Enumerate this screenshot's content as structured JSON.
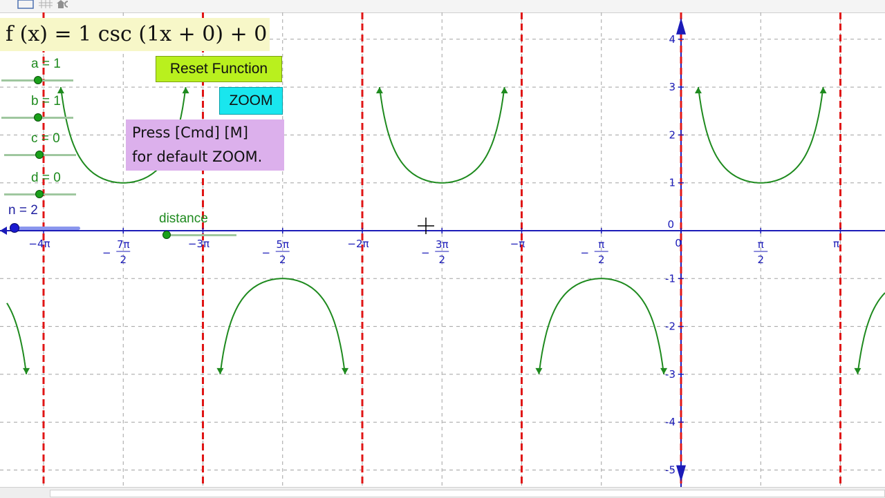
{
  "colors": {
    "curve": "#1e8a1e",
    "asymptote": "#e01515",
    "axis": "#1b1bb8",
    "grid": "#a0a0a0",
    "tick_label": "#1b1bb8",
    "formula_bg": "#f7f7c8",
    "reset_bg": "#b9f01e",
    "zoom_bg": "#19e6ee",
    "hint_bg": "#dcb0ec"
  },
  "formula": "f (x) = 1 csc (1x + 0) + 0",
  "sliders": {
    "a": {
      "label": "a = 1",
      "value": 1
    },
    "b": {
      "label": "b = 1",
      "value": 1
    },
    "c": {
      "label": "c = 0",
      "value": 0
    },
    "d": {
      "label": "d = 0",
      "value": 0
    },
    "n": {
      "label": "n = 2",
      "value": 2
    },
    "distance": {
      "label": "distance"
    }
  },
  "buttons": {
    "reset": "Reset Function",
    "zoom": "ZOOM"
  },
  "hint": {
    "line1": "Press [Cmd] [M]",
    "line2": "for default ZOOM."
  },
  "toolbar_icons": [
    "graphics-view-icon",
    "grid-icon",
    "home-icon",
    "undo-icon"
  ],
  "chart_data": {
    "type": "line",
    "function": "1*csc(1*x+0)+0",
    "series": [
      {
        "expression": "csc(x)",
        "clipped_ylim": [
          -3,
          3
        ]
      }
    ],
    "asymptotes_x_over_pi": [
      -4,
      -3,
      -2,
      -1,
      0,
      1
    ],
    "xlim_over_pi": [
      -4.23,
      1.28
    ],
    "ylim": [
      -5.2,
      4.6
    ],
    "x_ticks": [
      {
        "value_over_pi": -4,
        "text": "−4π"
      },
      {
        "value_over_pi": -3.5,
        "num": "7π",
        "den": "2"
      },
      {
        "value_over_pi": -3,
        "text": "−3π"
      },
      {
        "value_over_pi": -2.5,
        "num": "5π",
        "den": "2"
      },
      {
        "value_over_pi": -2,
        "text": "−2π"
      },
      {
        "value_over_pi": -1.5,
        "num": "3π",
        "den": "2"
      },
      {
        "value_over_pi": -1,
        "text": "−π"
      },
      {
        "value_over_pi": -0.5,
        "num": "π",
        "den": "2"
      },
      {
        "value_over_pi": 0.5,
        "num": "π",
        "den": "2",
        "positive": true
      },
      {
        "value_over_pi": 1,
        "text": "π"
      }
    ],
    "y_ticks": [
      {
        "value": 4,
        "text": "4"
      },
      {
        "value": 3,
        "text": "3"
      },
      {
        "value": 2,
        "text": "2"
      },
      {
        "value": 1,
        "text": "1"
      },
      {
        "value": 0,
        "text": "0"
      },
      {
        "value": -1,
        "text": "-1"
      },
      {
        "value": -2,
        "text": "-2"
      },
      {
        "value": -3,
        "text": "-3"
      },
      {
        "value": -4,
        "text": "-4"
      },
      {
        "value": -5,
        "text": "-5"
      }
    ],
    "origin_label": "0",
    "grid": true
  }
}
